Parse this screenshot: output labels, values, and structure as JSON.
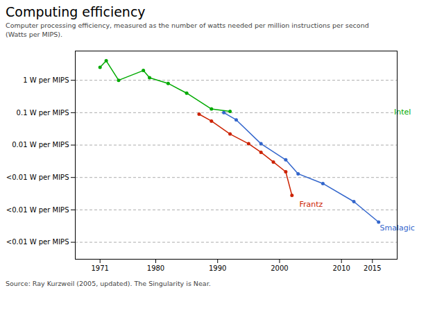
{
  "chart_data": {
    "type": "line",
    "title": "Computing efficiency",
    "subtitle": "Computer processing efficiency, measured as the number of watts needed per million instructions per second\n(Watts per MIPS).",
    "source": "Source: Ray Kurzweil (2005, updated). The Singularity is Near.",
    "log": "y",
    "grid": "y",
    "marker": "circle",
    "xlim": [
      1967,
      2019
    ],
    "xticks": [
      1971,
      1980,
      1990,
      2000,
      2010,
      2015
    ],
    "ylim": [
      3e-06,
      8.0
    ],
    "yticks": [
      {
        "value": 1.0,
        "label": "1 W per MIPS"
      },
      {
        "value": 0.1,
        "label": "0.1 W per MIPS"
      },
      {
        "value": 0.01,
        "label": "0.01 W per MIPS"
      },
      {
        "value": 0.001,
        "label": "<0.01 W per MIPS"
      },
      {
        "value": 0.0001,
        "label": "<0.01 W per MIPS"
      },
      {
        "value": 1e-05,
        "label": "<0.01 W per MIPS"
      }
    ],
    "series": [
      {
        "name": "Intel",
        "color": "#00aa00",
        "x": [
          1971,
          1972,
          1974,
          1978,
          1979,
          1982,
          1985,
          1989,
          1992
        ],
        "values": [
          2.5,
          4.0,
          1.0,
          2.0,
          1.2,
          0.8,
          0.4,
          0.13,
          0.11
        ]
      },
      {
        "name": "Frantz",
        "color": "#cc2200",
        "x": [
          1987,
          1989,
          1992,
          1995,
          1997,
          1999,
          2001,
          2002
        ],
        "values": [
          0.09,
          0.055,
          0.022,
          0.011,
          0.006,
          0.003,
          0.0015,
          0.00028
        ]
      },
      {
        "name": "Smalagic",
        "color": "#3366cc",
        "x": [
          1991,
          1993,
          1997,
          2001,
          2003,
          2007,
          2012,
          2016
        ],
        "values": [
          0.1,
          0.06,
          0.011,
          0.0035,
          0.0013,
          0.00065,
          0.00018,
          4.2e-05
        ]
      }
    ],
    "annotations": [
      {
        "text": "Intel",
        "x": 2018.5,
        "y": 0.105,
        "color": "#00aa00"
      },
      {
        "text": "Frantz",
        "x": 2003.2,
        "y": 0.000145,
        "color": "#cc2200"
      },
      {
        "text": "Smalagic",
        "x": 2016.2,
        "y": 2.8e-05,
        "color": "#3366cc"
      }
    ]
  }
}
